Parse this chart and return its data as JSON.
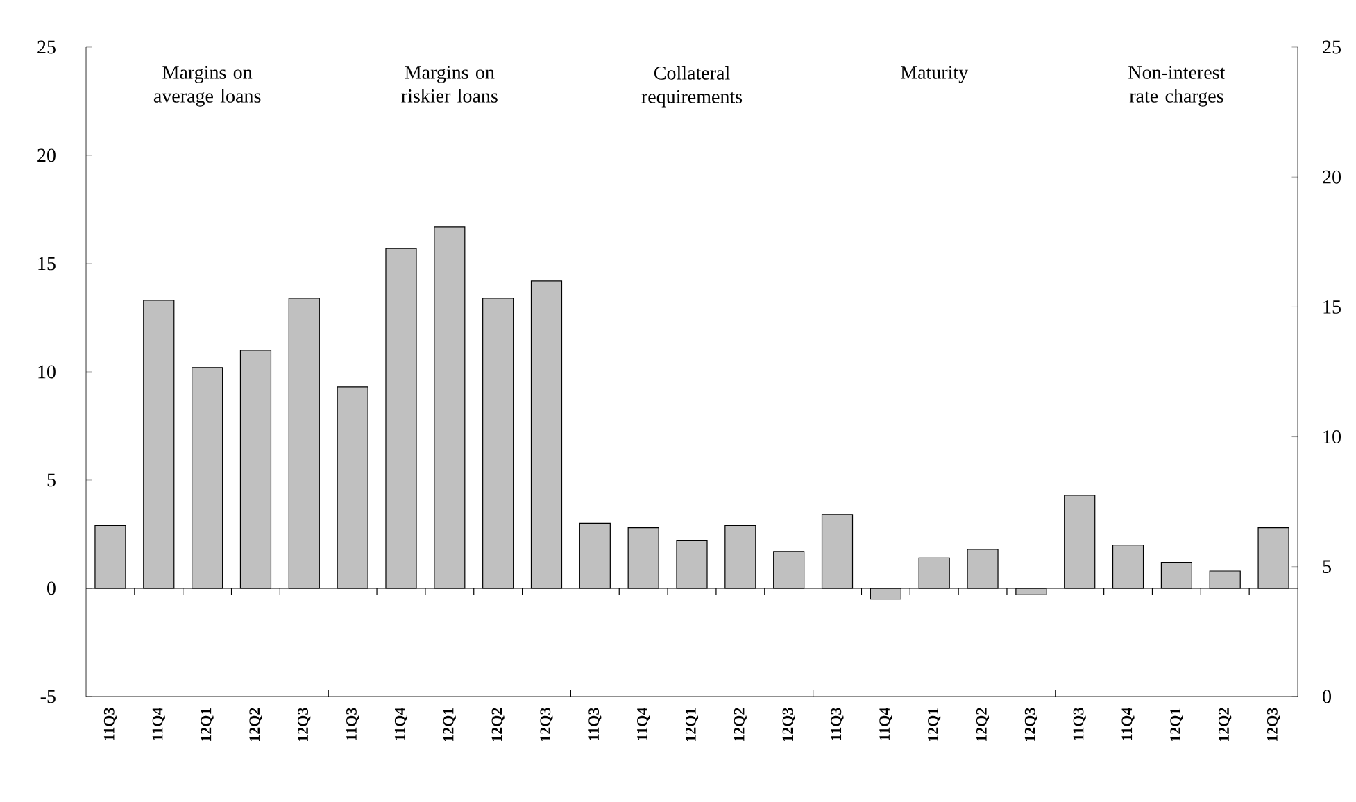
{
  "chart_data": {
    "type": "bar",
    "categories": [
      "11Q3",
      "11Q4",
      "12Q1",
      "12Q2",
      "12Q3",
      "11Q3",
      "11Q4",
      "12Q1",
      "12Q2",
      "12Q3",
      "11Q3",
      "11Q4",
      "12Q1",
      "12Q2",
      "12Q3",
      "11Q3",
      "11Q4",
      "12Q1",
      "12Q2",
      "12Q3",
      "11Q3",
      "11Q4",
      "12Q1",
      "12Q2",
      "12Q3"
    ],
    "values": [
      2.9,
      13.3,
      10.2,
      11.0,
      13.4,
      9.3,
      15.7,
      16.7,
      13.4,
      14.2,
      3.0,
      2.8,
      2.2,
      2.9,
      1.7,
      3.4,
      -0.5,
      1.4,
      1.8,
      -0.3,
      4.3,
      2.0,
      1.2,
      0.8,
      2.8
    ],
    "color": "#c0c0c0",
    "annotations": [
      "Margins on average loans",
      "Margins on riskier loans",
      "Collateral requirements",
      "Maturity",
      "Non-interest rate charges"
    ],
    "ylim": [
      -5,
      25
    ],
    "yticks": [
      -5,
      0,
      5,
      10,
      15,
      20,
      25
    ],
    "y2lim": [
      0,
      25
    ],
    "y2ticks": [
      0,
      5,
      10,
      15,
      20,
      25
    ]
  }
}
